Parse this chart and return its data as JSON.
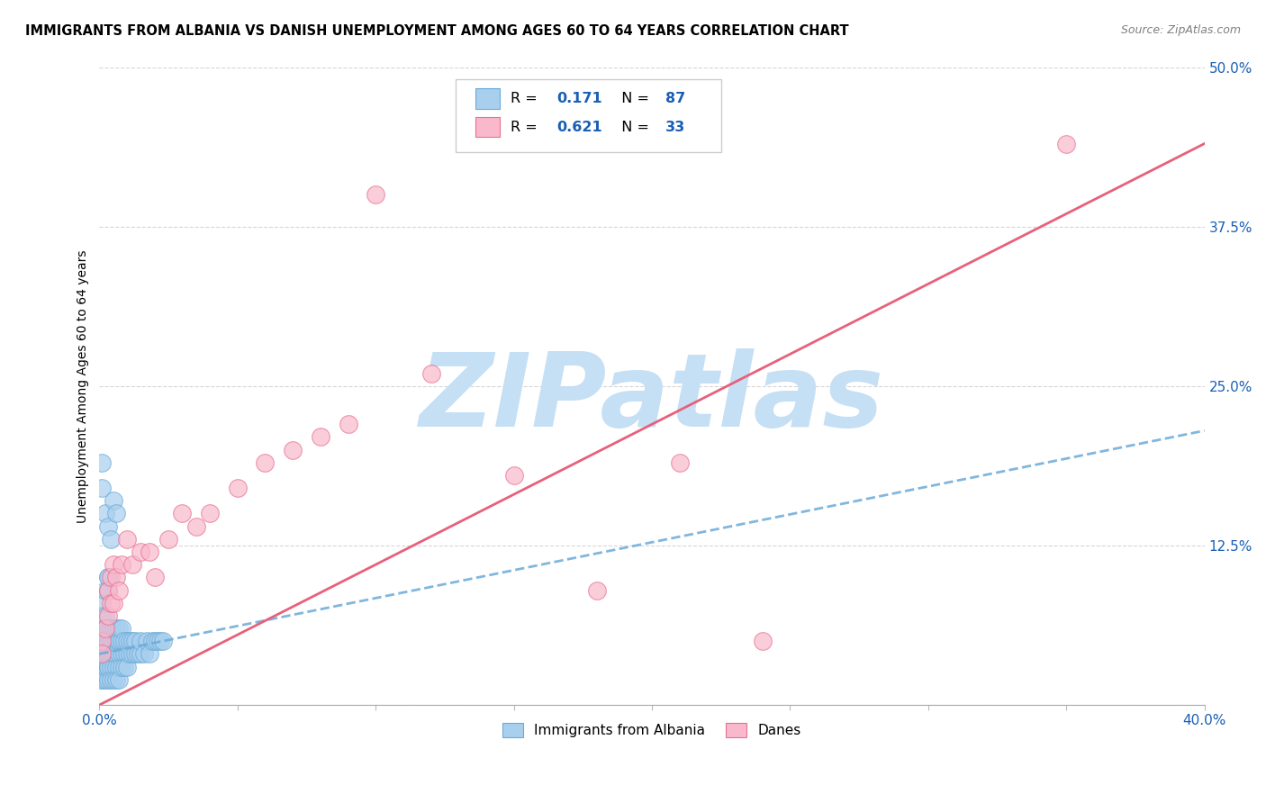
{
  "title": "IMMIGRANTS FROM ALBANIA VS DANISH UNEMPLOYMENT AMONG AGES 60 TO 64 YEARS CORRELATION CHART",
  "source": "Source: ZipAtlas.com",
  "ylabel": "Unemployment Among Ages 60 to 64 years",
  "xlim": [
    0.0,
    0.4
  ],
  "ylim": [
    0.0,
    0.5
  ],
  "xticks": [
    0.0,
    0.05,
    0.1,
    0.15,
    0.2,
    0.25,
    0.3,
    0.35,
    0.4
  ],
  "xtick_labels": [
    "0.0%",
    "",
    "",
    "",
    "",
    "",
    "",
    "",
    "40.0%"
  ],
  "ytick_labels": [
    "",
    "12.5%",
    "25.0%",
    "37.5%",
    "50.0%"
  ],
  "yticks": [
    0.0,
    0.125,
    0.25,
    0.375,
    0.5
  ],
  "blue_R": 0.171,
  "blue_N": 87,
  "pink_R": 0.621,
  "pink_N": 33,
  "blue_color": "#A8CFEE",
  "blue_edge_color": "#6BAAD8",
  "pink_color": "#F9B8CC",
  "pink_edge_color": "#E87090",
  "blue_line_color": "#6BAAD8",
  "pink_line_color": "#E8607A",
  "blue_scatter_x": [
    0.001,
    0.001,
    0.001,
    0.001,
    0.001,
    0.001,
    0.001,
    0.001,
    0.001,
    0.002,
    0.002,
    0.002,
    0.002,
    0.002,
    0.002,
    0.002,
    0.002,
    0.002,
    0.002,
    0.003,
    0.003,
    0.003,
    0.003,
    0.003,
    0.003,
    0.003,
    0.003,
    0.004,
    0.004,
    0.004,
    0.004,
    0.004,
    0.004,
    0.005,
    0.005,
    0.005,
    0.005,
    0.005,
    0.005,
    0.006,
    0.006,
    0.006,
    0.006,
    0.006,
    0.007,
    0.007,
    0.007,
    0.007,
    0.007,
    0.008,
    0.008,
    0.008,
    0.008,
    0.009,
    0.009,
    0.009,
    0.01,
    0.01,
    0.01,
    0.011,
    0.011,
    0.012,
    0.012,
    0.013,
    0.013,
    0.014,
    0.015,
    0.015,
    0.016,
    0.017,
    0.018,
    0.019,
    0.02,
    0.021,
    0.022,
    0.023,
    0.001,
    0.002,
    0.003,
    0.004,
    0.005,
    0.006,
    0.002,
    0.003,
    0.003,
    0.003,
    0.001
  ],
  "blue_scatter_y": [
    0.05,
    0.04,
    0.03,
    0.06,
    0.02,
    0.07,
    0.08,
    0.03,
    0.02,
    0.05,
    0.04,
    0.06,
    0.03,
    0.07,
    0.02,
    0.05,
    0.04,
    0.03,
    0.06,
    0.04,
    0.05,
    0.03,
    0.06,
    0.02,
    0.05,
    0.04,
    0.03,
    0.05,
    0.04,
    0.03,
    0.06,
    0.02,
    0.05,
    0.04,
    0.03,
    0.05,
    0.02,
    0.06,
    0.04,
    0.03,
    0.05,
    0.04,
    0.02,
    0.06,
    0.04,
    0.05,
    0.03,
    0.06,
    0.02,
    0.04,
    0.05,
    0.03,
    0.06,
    0.04,
    0.05,
    0.03,
    0.04,
    0.05,
    0.03,
    0.04,
    0.05,
    0.04,
    0.05,
    0.04,
    0.05,
    0.04,
    0.04,
    0.05,
    0.04,
    0.05,
    0.04,
    0.05,
    0.05,
    0.05,
    0.05,
    0.05,
    0.17,
    0.15,
    0.14,
    0.13,
    0.16,
    0.15,
    0.09,
    0.1,
    0.09,
    0.1,
    0.19
  ],
  "pink_scatter_x": [
    0.001,
    0.001,
    0.002,
    0.003,
    0.003,
    0.004,
    0.004,
    0.005,
    0.005,
    0.006,
    0.007,
    0.008,
    0.01,
    0.012,
    0.015,
    0.018,
    0.02,
    0.025,
    0.03,
    0.035,
    0.04,
    0.05,
    0.06,
    0.07,
    0.08,
    0.09,
    0.1,
    0.12,
    0.15,
    0.18,
    0.21,
    0.24,
    0.35
  ],
  "pink_scatter_y": [
    0.05,
    0.04,
    0.06,
    0.09,
    0.07,
    0.08,
    0.1,
    0.08,
    0.11,
    0.1,
    0.09,
    0.11,
    0.13,
    0.11,
    0.12,
    0.12,
    0.1,
    0.13,
    0.15,
    0.14,
    0.15,
    0.17,
    0.19,
    0.2,
    0.21,
    0.22,
    0.4,
    0.26,
    0.18,
    0.09,
    0.19,
    0.05,
    0.44
  ],
  "blue_line_x": [
    0.0,
    0.4
  ],
  "blue_line_y": [
    0.04,
    0.215
  ],
  "pink_line_x": [
    0.0,
    0.4
  ],
  "pink_line_y": [
    0.0,
    0.44
  ],
  "watermark": "ZIPatlas",
  "watermark_color": "#C5DFF5",
  "legend_color": "#1A5FB4",
  "title_fontsize": 10.5,
  "tick_label_color": "#1A5FB4"
}
